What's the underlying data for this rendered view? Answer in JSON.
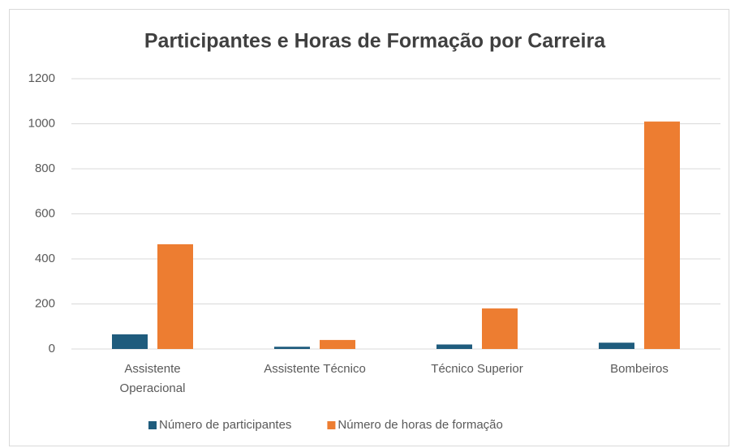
{
  "chart_data": {
    "type": "bar",
    "title": "Participantes e Horas de Formação por Carreira",
    "categories": [
      "Assistente Operacional",
      "Assistente Técnico",
      "Técnico Superior",
      "Bombeiros"
    ],
    "series": [
      {
        "name": "Número de participantes",
        "color": "#1f5c7d",
        "values": [
          65,
          10,
          20,
          28
        ]
      },
      {
        "name": "Número de horas de formação",
        "color": "#ed7d31",
        "values": [
          465,
          40,
          180,
          1010
        ]
      }
    ],
    "ylim": [
      0,
      1200
    ],
    "yticks": [
      0,
      200,
      400,
      600,
      800,
      1000,
      1200
    ],
    "grid": true,
    "legend": "bottom"
  }
}
